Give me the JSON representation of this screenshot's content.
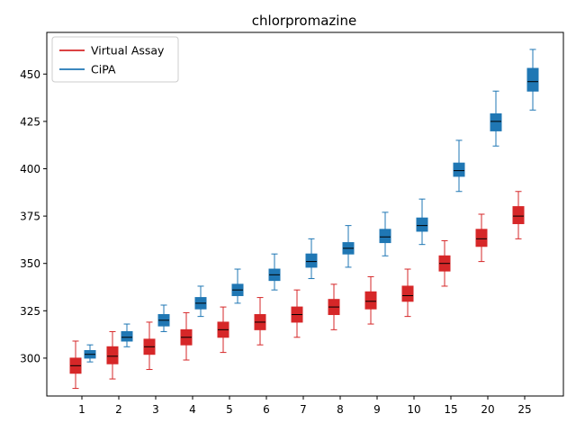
{
  "chart_data": {
    "type": "box",
    "title": "chlorpromazine",
    "xlabel": "",
    "ylabel": "",
    "categories": [
      "1",
      "2",
      "3",
      "4",
      "5",
      "6",
      "7",
      "8",
      "9",
      "10",
      "15",
      "20",
      "25"
    ],
    "ylim": [
      280,
      472
    ],
    "yticks": [
      300,
      325,
      350,
      375,
      400,
      425,
      450
    ],
    "grid": false,
    "legend_position": "top-left",
    "series": [
      {
        "name": "Virtual Assay",
        "color": "#d62728",
        "boxes": [
          {
            "whislo": 284,
            "q1": 292,
            "med": 296,
            "q3": 300,
            "whishi": 309
          },
          {
            "whislo": 289,
            "q1": 297,
            "med": 301,
            "q3": 306,
            "whishi": 314
          },
          {
            "whislo": 294,
            "q1": 302,
            "med": 306,
            "q3": 310,
            "whishi": 319
          },
          {
            "whislo": 299,
            "q1": 307,
            "med": 311,
            "q3": 315,
            "whishi": 324
          },
          {
            "whislo": 303,
            "q1": 311,
            "med": 315,
            "q3": 319,
            "whishi": 327
          },
          {
            "whislo": 307,
            "q1": 315,
            "med": 319,
            "q3": 323,
            "whishi": 332
          },
          {
            "whislo": 311,
            "q1": 319,
            "med": 323,
            "q3": 327,
            "whishi": 336
          },
          {
            "whislo": 315,
            "q1": 323,
            "med": 327,
            "q3": 331,
            "whishi": 339
          },
          {
            "whislo": 318,
            "q1": 326,
            "med": 330,
            "q3": 335,
            "whishi": 343
          },
          {
            "whislo": 322,
            "q1": 330,
            "med": 333,
            "q3": 338,
            "whishi": 347
          },
          {
            "whislo": 338,
            "q1": 346,
            "med": 350,
            "q3": 354,
            "whishi": 362
          },
          {
            "whislo": 351,
            "q1": 359,
            "med": 363,
            "q3": 368,
            "whishi": 376
          },
          {
            "whislo": 363,
            "q1": 371,
            "med": 375,
            "q3": 380,
            "whishi": 388
          }
        ]
      },
      {
        "name": "CiPA",
        "color": "#1f77b4",
        "boxes": [
          {
            "whislo": 298,
            "q1": 300,
            "med": 302,
            "q3": 304,
            "whishi": 307
          },
          {
            "whislo": 306,
            "q1": 309,
            "med": 311,
            "q3": 314,
            "whishi": 318
          },
          {
            "whislo": 314,
            "q1": 317,
            "med": 320,
            "q3": 323,
            "whishi": 328
          },
          {
            "whislo": 322,
            "q1": 326,
            "med": 329,
            "q3": 332,
            "whishi": 338
          },
          {
            "whislo": 329,
            "q1": 333,
            "med": 336,
            "q3": 339,
            "whishi": 347
          },
          {
            "whislo": 336,
            "q1": 341,
            "med": 344,
            "q3": 347,
            "whishi": 355
          },
          {
            "whislo": 342,
            "q1": 348,
            "med": 351,
            "q3": 355,
            "whishi": 363
          },
          {
            "whislo": 348,
            "q1": 355,
            "med": 358,
            "q3": 361,
            "whishi": 370
          },
          {
            "whislo": 354,
            "q1": 361,
            "med": 364,
            "q3": 368,
            "whishi": 377
          },
          {
            "whislo": 360,
            "q1": 367,
            "med": 370,
            "q3": 374,
            "whishi": 384
          },
          {
            "whislo": 388,
            "q1": 396,
            "med": 399,
            "q3": 403,
            "whishi": 415
          },
          {
            "whislo": 412,
            "q1": 420,
            "med": 425,
            "q3": 429,
            "whishi": 441
          },
          {
            "whislo": 431,
            "q1": 441,
            "med": 446,
            "q3": 453,
            "whishi": 463
          }
        ]
      }
    ]
  }
}
